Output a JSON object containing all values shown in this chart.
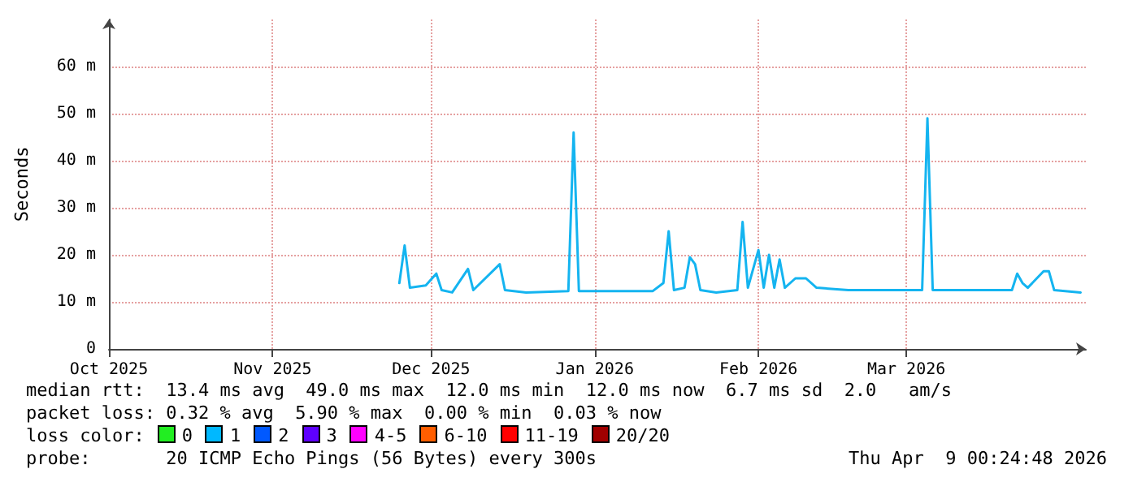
{
  "chart_data": {
    "type": "line",
    "ylabel": "Seconds",
    "xlim": [
      "2025-10-01",
      "2026-04-04"
    ],
    "xticks": [
      {
        "value": "2025-10-01",
        "label": "Oct 2025"
      },
      {
        "value": "2025-11-01",
        "label": "Nov 2025"
      },
      {
        "value": "2025-12-01",
        "label": "Dec 2025"
      },
      {
        "value": "2026-01-01",
        "label": "Jan 2026"
      },
      {
        "value": "2026-02-01",
        "label": "Feb 2026"
      },
      {
        "value": "2026-03-01",
        "label": "Mar 2026"
      }
    ],
    "ylim": [
      0,
      70
    ],
    "yticks": [
      0,
      {
        "value": 10,
        "label": "10 m"
      },
      {
        "value": 20,
        "label": "20 m"
      },
      {
        "value": 30,
        "label": "30 m"
      },
      {
        "value": 40,
        "label": "40 m"
      },
      {
        "value": 50,
        "label": "50 m"
      },
      {
        "value": 60,
        "label": "60 m"
      }
    ],
    "grid": true,
    "marker": "none",
    "line_style": "solid",
    "series": [
      {
        "color": "#14b4f0",
        "x": [
          "2025-11-25",
          "2025-11-26",
          "2025-11-27",
          "2025-11-30",
          "2025-12-02",
          "2025-12-03",
          "2025-12-05",
          "2025-12-08",
          "2025-12-09",
          "2025-12-14",
          "2025-12-15",
          "2025-12-19",
          "2025-12-27",
          "2025-12-28",
          "2025-12-29",
          "2026-01-12",
          "2026-01-14",
          "2026-01-15",
          "2026-01-16",
          "2026-01-18",
          "2026-01-19",
          "2026-01-20",
          "2026-01-21",
          "2026-01-24",
          "2026-01-28",
          "2026-01-29",
          "2026-01-30",
          "2026-02-01",
          "2026-02-02",
          "2026-02-03",
          "2026-02-04",
          "2026-02-05",
          "2026-02-06",
          "2026-02-08",
          "2026-02-10",
          "2026-02-12",
          "2026-02-18",
          "2026-03-02",
          "2026-03-04",
          "2026-03-05",
          "2026-03-06",
          "2026-03-21",
          "2026-03-22",
          "2026-03-23",
          "2026-03-24",
          "2026-03-27",
          "2026-03-28",
          "2026-03-29",
          "2026-04-03"
        ],
        "values": [
          14,
          22,
          13,
          13.5,
          16,
          12.5,
          12,
          17,
          12.5,
          18,
          12.5,
          12,
          12.3,
          46,
          12.3,
          12.3,
          14,
          25,
          12.5,
          13,
          19.5,
          18,
          12.5,
          12,
          12.5,
          27,
          13,
          21,
          13,
          20,
          13,
          19,
          13,
          15,
          15,
          13,
          12.5,
          12.5,
          12.5,
          49,
          12.5,
          12.5,
          16,
          14,
          13,
          16.5,
          16.5,
          12.5,
          12
        ]
      }
    ],
    "annotations": [
      "median rtt:  13.4 ms avg  49.0 ms max  12.0 ms min  12.0 ms now  6.7 ms sd  2.0   am/s",
      "packet loss: 0.32 % avg  5.90 % max  0.00 % min  0.03 % now",
      "loss color:",
      "0",
      "1",
      "2",
      "3",
      "4-5",
      "6-10",
      "11-19",
      "20/20",
      "probe:       20 ICMP Echo Pings (56 Bytes) every 300s",
      "Thu Apr  9 00:24:48 2026"
    ]
  }
}
